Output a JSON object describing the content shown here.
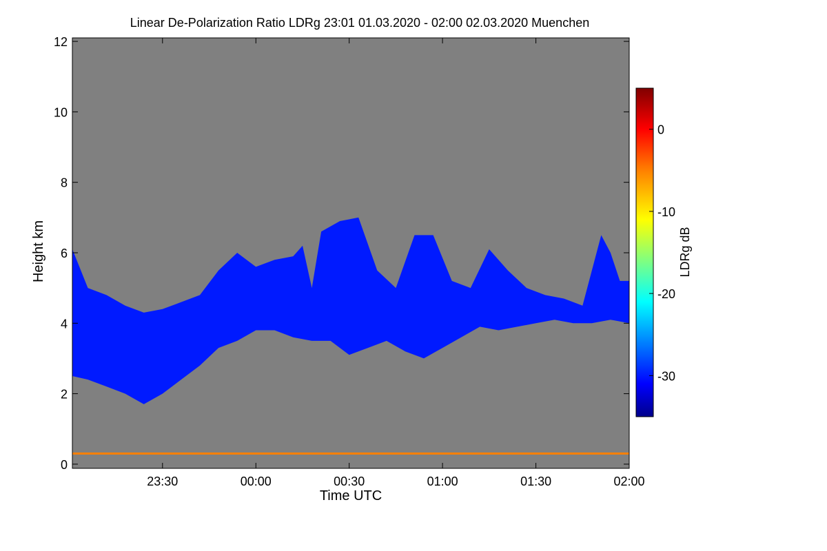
{
  "chart_data": {
    "type": "heatmap",
    "title": "Linear De-Polarization Ratio LDRg   23:01 01.03.2020 - 02:00 02.03.2020 Muenchen",
    "xlabel": "Time UTC",
    "ylabel": "Height km",
    "colorbar_label": "LDRg dB",
    "x_start_hours": -0.983,
    "x_end_hours": 2.0,
    "xlim": [
      -0.983,
      2.0
    ],
    "ylim": [
      -0.12,
      12.1
    ],
    "x_ticks": [
      {
        "value": -0.5,
        "label": "23:30"
      },
      {
        "value": 0.0,
        "label": "00:00"
      },
      {
        "value": 0.5,
        "label": "00:30"
      },
      {
        "value": 1.0,
        "label": "01:00"
      },
      {
        "value": 1.5,
        "label": "01:30"
      },
      {
        "value": 2.0,
        "label": "02:00"
      }
    ],
    "y_ticks": [
      {
        "value": 0,
        "label": "0"
      },
      {
        "value": 2,
        "label": "2"
      },
      {
        "value": 4,
        "label": "4"
      },
      {
        "value": 6,
        "label": "6"
      },
      {
        "value": 8,
        "label": "8"
      },
      {
        "value": 10,
        "label": "10"
      },
      {
        "value": 12,
        "label": "12"
      }
    ],
    "colorbar_range": [
      -35,
      5
    ],
    "colorbar_ticks": [
      {
        "value": 0,
        "label": "0"
      },
      {
        "value": -10,
        "label": "-10"
      },
      {
        "value": -20,
        "label": "-20"
      },
      {
        "value": -30,
        "label": "-30"
      }
    ],
    "colormap_stops": [
      {
        "value": -35,
        "color": "#00008b"
      },
      {
        "value": -31,
        "color": "#0000ff"
      },
      {
        "value": -26,
        "color": "#0080ff"
      },
      {
        "value": -21,
        "color": "#00ffff"
      },
      {
        "value": -16,
        "color": "#80ff80"
      },
      {
        "value": -11,
        "color": "#ffff00"
      },
      {
        "value": -5,
        "color": "#ff8000"
      },
      {
        "value": 0,
        "color": "#ff0000"
      },
      {
        "value": 5,
        "color": "#800000"
      }
    ],
    "background_color": "#808080",
    "cloud_layer": {
      "ldr_db": -30,
      "top_km": [
        [
          -0.983,
          6.1
        ],
        [
          -0.9,
          5.0
        ],
        [
          -0.8,
          4.8
        ],
        [
          -0.7,
          4.5
        ],
        [
          -0.6,
          4.3
        ],
        [
          -0.5,
          4.4
        ],
        [
          -0.4,
          4.6
        ],
        [
          -0.3,
          4.8
        ],
        [
          -0.2,
          5.5
        ],
        [
          -0.1,
          6.0
        ],
        [
          0.0,
          5.6
        ],
        [
          0.1,
          5.8
        ],
        [
          0.2,
          5.9
        ],
        [
          0.25,
          6.2
        ],
        [
          0.3,
          5.0
        ],
        [
          0.35,
          6.6
        ],
        [
          0.45,
          6.9
        ],
        [
          0.55,
          7.0
        ],
        [
          0.65,
          5.5
        ],
        [
          0.75,
          5.0
        ],
        [
          0.85,
          6.5
        ],
        [
          0.95,
          6.5
        ],
        [
          1.05,
          5.2
        ],
        [
          1.15,
          5.0
        ],
        [
          1.25,
          6.1
        ],
        [
          1.35,
          5.5
        ],
        [
          1.45,
          5.0
        ],
        [
          1.55,
          4.8
        ],
        [
          1.65,
          4.7
        ],
        [
          1.75,
          4.5
        ],
        [
          1.85,
          6.5
        ],
        [
          1.9,
          6.0
        ],
        [
          1.95,
          5.2
        ],
        [
          2.0,
          5.2
        ]
      ],
      "base_km": [
        [
          -0.983,
          2.5
        ],
        [
          -0.9,
          2.4
        ],
        [
          -0.8,
          2.2
        ],
        [
          -0.7,
          2.0
        ],
        [
          -0.6,
          1.7
        ],
        [
          -0.5,
          2.0
        ],
        [
          -0.4,
          2.4
        ],
        [
          -0.3,
          2.8
        ],
        [
          -0.2,
          3.3
        ],
        [
          -0.1,
          3.5
        ],
        [
          0.0,
          3.8
        ],
        [
          0.1,
          3.8
        ],
        [
          0.2,
          3.6
        ],
        [
          0.3,
          3.5
        ],
        [
          0.4,
          3.5
        ],
        [
          0.5,
          3.1
        ],
        [
          0.6,
          3.3
        ],
        [
          0.7,
          3.5
        ],
        [
          0.8,
          3.2
        ],
        [
          0.9,
          3.0
        ],
        [
          1.0,
          3.3
        ],
        [
          1.1,
          3.6
        ],
        [
          1.2,
          3.9
        ],
        [
          1.3,
          3.8
        ],
        [
          1.4,
          3.9
        ],
        [
          1.5,
          4.0
        ],
        [
          1.6,
          4.1
        ],
        [
          1.7,
          4.0
        ],
        [
          1.8,
          4.0
        ],
        [
          1.9,
          4.1
        ],
        [
          2.0,
          4.0
        ]
      ]
    },
    "boundary_layer": {
      "height_km": 0.3,
      "ldr_db": -5,
      "x_range": [
        -0.983,
        2.0
      ]
    }
  }
}
